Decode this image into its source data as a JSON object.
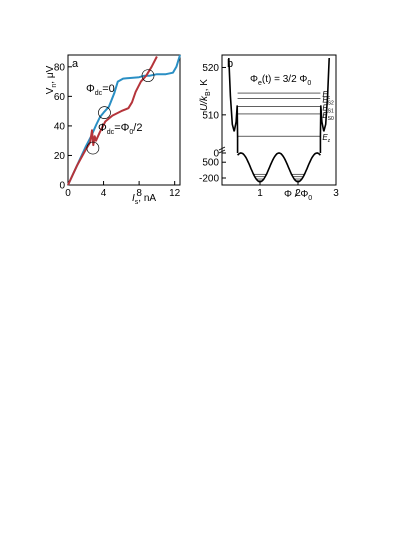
{
  "chart_data": [
    {
      "type": "line",
      "panel_label": "a",
      "xlabel": "I_s, nA",
      "xlabel_main": "I",
      "xlabel_sub": "s",
      "xlabel_unit": ", nA",
      "ylabel": "V_n, μV",
      "ylabel_main": "V",
      "ylabel_sub": "n",
      "ylabel_unit": ", μV",
      "xlim": [
        0,
        12.6
      ],
      "ylim": [
        0,
        88
      ],
      "xticks": [
        0,
        4,
        8,
        12
      ],
      "yticks": [
        0,
        20,
        40,
        60,
        80
      ],
      "xtick_labels": [
        "0",
        "4",
        "8",
        "12"
      ],
      "ytick_labels": [
        "0",
        "20",
        "40",
        "60",
        "80"
      ],
      "series": [
        {
          "color": "#2a8fc4",
          "label_main": "Φ",
          "label_sub": "dc",
          "label_rest": "=0",
          "x": [
            0,
            1,
            2,
            2.6,
            3.2,
            3.6,
            4.0,
            4.6,
            5.2,
            5.6,
            6.2,
            8.0,
            8.6,
            9.2,
            10,
            11,
            11.8,
            12.2,
            12.6
          ],
          "y": [
            0,
            13,
            26,
            33,
            41,
            46,
            49,
            53,
            62,
            70,
            72,
            73,
            74,
            74,
            75,
            75,
            76,
            80,
            88
          ]
        },
        {
          "color": "#b5343a",
          "label_main": "Φ",
          "label_sub": "dc",
          "label_rest": "=Φ",
          "label_sub2": "0",
          "label_tail": "/2",
          "x": [
            0,
            1,
            2,
            2.5,
            2.7,
            2.85,
            3.0,
            3.15,
            3.6,
            4.2,
            5.0,
            6.0,
            6.8,
            7.2,
            7.6,
            8.2,
            8.8,
            9.4,
            10.0
          ],
          "y": [
            0,
            13,
            24,
            29,
            37,
            27,
            33,
            30,
            36,
            43,
            47,
            50,
            52,
            56,
            63,
            70,
            74,
            80,
            87
          ]
        }
      ],
      "annotations": [
        {
          "type": "circle",
          "x": 2.8,
          "y": 25
        },
        {
          "type": "circle",
          "x": 4.1,
          "y": 49
        },
        {
          "type": "circle",
          "x": 9.0,
          "y": 74
        }
      ]
    },
    {
      "type": "line",
      "panel_label": "b",
      "title_main": "Φ",
      "title_sub": "e",
      "title_rest": "(t) = 3/2 Φ",
      "title_sub2": "0",
      "xlabel": "Φ / Φ_0",
      "xlabel_main": "Φ / Φ",
      "xlabel_sub": "0",
      "ylabel": "U/k_B, K",
      "ylabel_main": "U/k",
      "ylabel_sub": "B",
      "ylabel_unit": ", K",
      "xlim": [
        0,
        3
      ],
      "xticks": [
        1,
        2,
        3
      ],
      "xtick_labels": [
        "1",
        "2",
        "3"
      ],
      "ylim_upper": [
        503,
        522
      ],
      "ylim_lower": [
        -240,
        0
      ],
      "yticks_upper_labels": [
        "520",
        "510",
        "500"
      ],
      "yticks_upper": [
        520,
        510,
        500
      ],
      "yticks_lower_labels": [
        "0",
        "-200"
      ],
      "yticks_lower": [
        0,
        -200
      ],
      "level_labels": [
        {
          "main": "E",
          "sub": "c",
          "y": 514.6
        },
        {
          "main": "E",
          "sub": "S2",
          "y": 513.4
        },
        {
          "main": "E",
          "sub": "S1",
          "y": 511.8
        },
        {
          "main": "E",
          "sub": "S0",
          "y": 510.2
        },
        {
          "main": "E",
          "sub": "z",
          "y": 505.5
        }
      ],
      "well_levels": [
        -170,
        -190,
        -208,
        -222
      ]
    }
  ]
}
